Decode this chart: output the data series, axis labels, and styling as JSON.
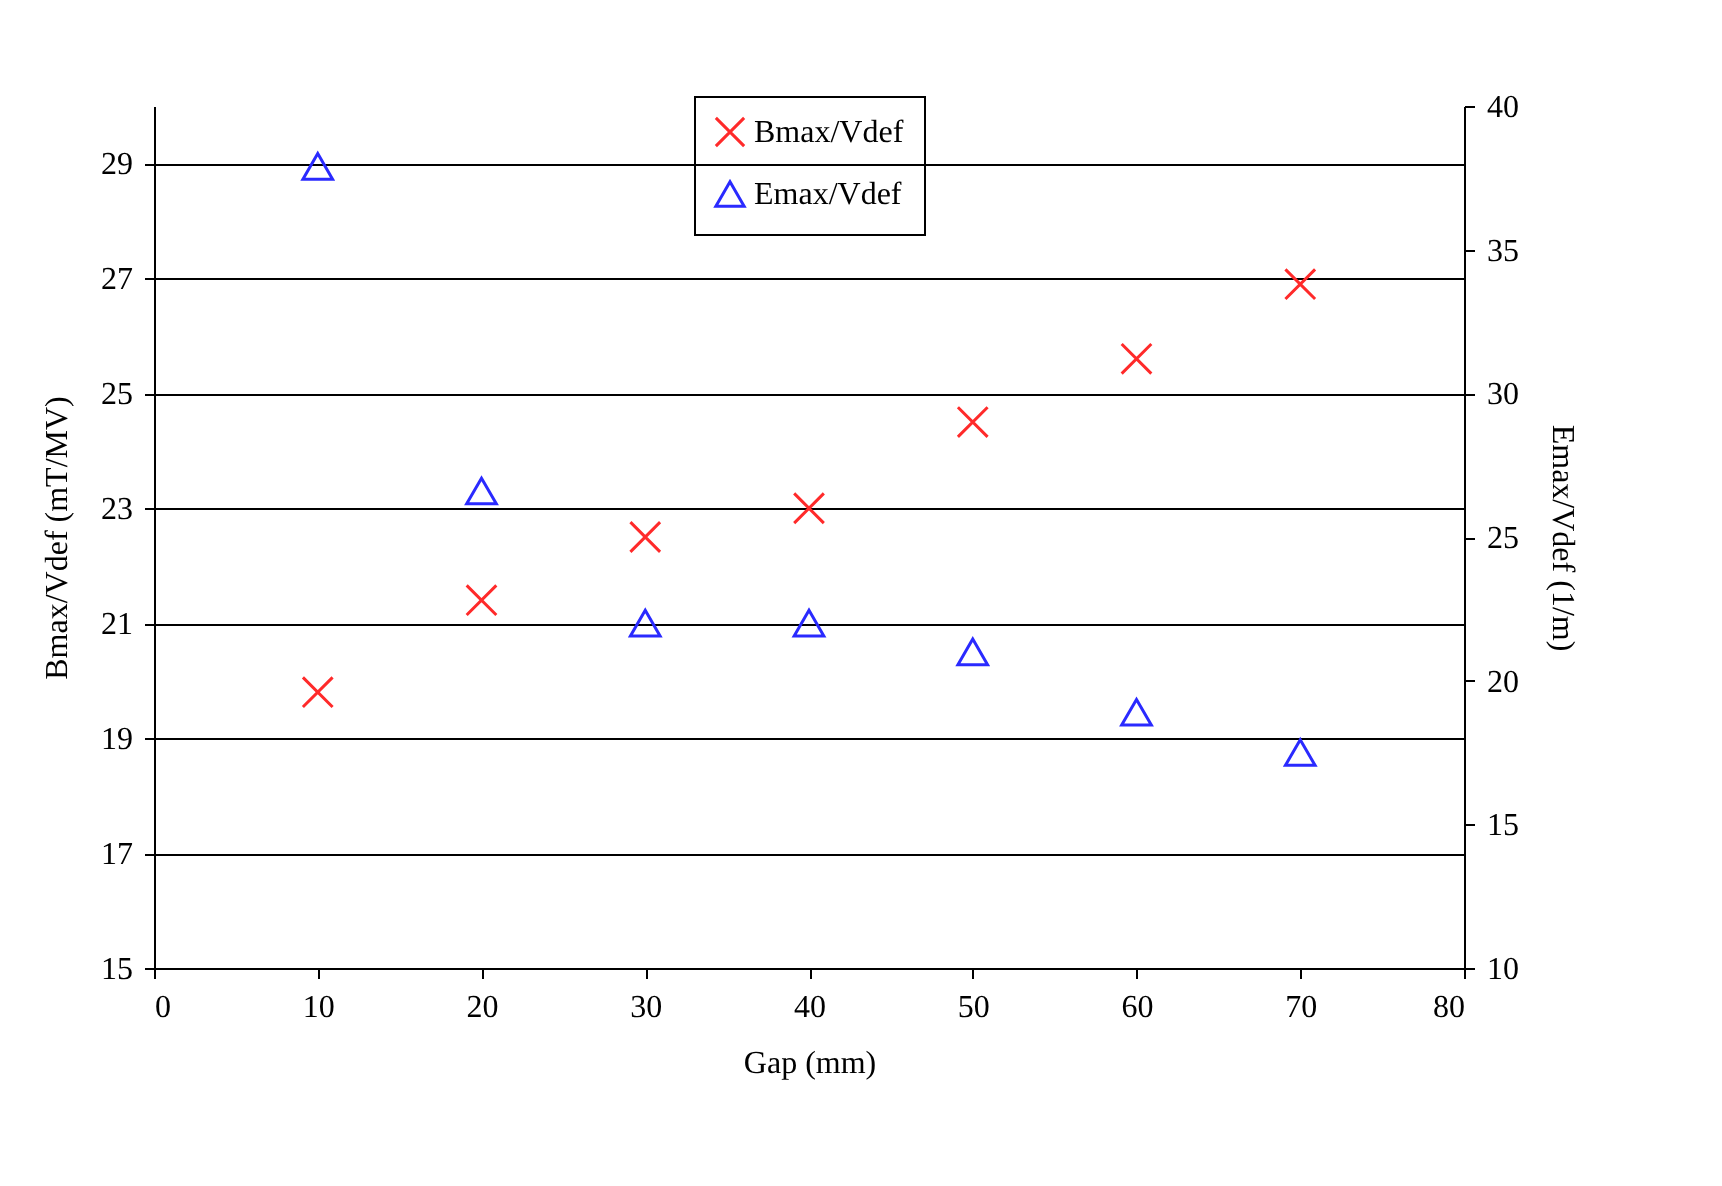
{
  "chart_data": {
    "type": "scatter",
    "xlabel": "Gap (mm)",
    "ylabel": "Bmax/Vdef (mT/MV)",
    "y2label": "Emax/Vdef (1/m)",
    "x": [
      10,
      20,
      30,
      40,
      50,
      60,
      70
    ],
    "series": [
      {
        "name": "Bmax/Vdef",
        "color": "#ff2a2a",
        "marker": "cross",
        "values": [
          19.8,
          21.4,
          22.5,
          23.0,
          24.5,
          25.6,
          26.9
        ]
      },
      {
        "name": "Emax/Vdef",
        "color": "#2a2aff",
        "marker": "triangle",
        "axis": "y2",
        "values": [
          37.9,
          26.6,
          22.0,
          22.0,
          21.0,
          18.9,
          17.5
        ]
      }
    ],
    "xlim": [
      0,
      80
    ],
    "xticks": [
      0,
      10,
      20,
      30,
      40,
      50,
      60,
      70,
      80
    ],
    "ylim": [
      15,
      30
    ],
    "yticks": [
      15,
      17,
      19,
      21,
      23,
      25,
      27,
      29
    ],
    "y2lim": [
      10,
      40
    ],
    "y2ticks": [
      10,
      15,
      20,
      25,
      30,
      35,
      40
    ],
    "grid": "y",
    "legend": "top"
  }
}
